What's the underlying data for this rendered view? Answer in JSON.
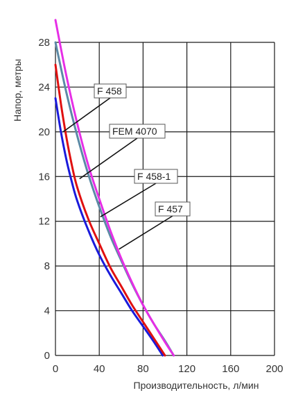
{
  "chart_data": {
    "type": "line",
    "title": "",
    "xlabel": "Производительность, л/мин",
    "ylabel": "Напор, метры",
    "xlim": [
      0,
      200
    ],
    "ylim": [
      0,
      28
    ],
    "xticks": [
      0,
      40,
      80,
      120,
      160,
      200
    ],
    "yticks": [
      0,
      4,
      8,
      12,
      16,
      20,
      24,
      28
    ],
    "xtick_labels": [
      "0",
      "40",
      "80",
      "120",
      "160",
      "200"
    ],
    "ytick_labels": [
      "0",
      "4",
      "8",
      "12",
      "16",
      "20",
      "24",
      "28"
    ],
    "grid": true,
    "series": [
      {
        "name": "F 458",
        "color": "#1a1adb",
        "points": [
          [
            0,
            23
          ],
          [
            5,
            20
          ],
          [
            10,
            17.5
          ],
          [
            15,
            15.5
          ],
          [
            20,
            13.8
          ],
          [
            30,
            11.2
          ],
          [
            40,
            9
          ],
          [
            50,
            7.2
          ],
          [
            60,
            5.6
          ],
          [
            70,
            4
          ],
          [
            80,
            2.6
          ],
          [
            90,
            1.2
          ],
          [
            98,
            0
          ]
        ]
      },
      {
        "name": "FEM 4070",
        "color": "#e01010",
        "points": [
          [
            0,
            26
          ],
          [
            5,
            22.5
          ],
          [
            10,
            19.5
          ],
          [
            15,
            17
          ],
          [
            20,
            15
          ],
          [
            30,
            12.2
          ],
          [
            40,
            10
          ],
          [
            50,
            7.9
          ],
          [
            60,
            6.2
          ],
          [
            70,
            4.5
          ],
          [
            80,
            3
          ],
          [
            90,
            1.5
          ],
          [
            100,
            0
          ]
        ]
      },
      {
        "name": "F 458-1",
        "color": "#5c8aa6",
        "points": [
          [
            0,
            28
          ],
          [
            10,
            23.5
          ],
          [
            20,
            19.6
          ],
          [
            30,
            16.2
          ],
          [
            40,
            13.3
          ],
          [
            50,
            10.7
          ],
          [
            60,
            8.5
          ],
          [
            70,
            6.4
          ],
          [
            80,
            4.5
          ],
          [
            90,
            2.8
          ],
          [
            100,
            1.3
          ],
          [
            108,
            0
          ]
        ]
      },
      {
        "name": "F 457",
        "color": "#e62ee6",
        "points": [
          [
            0,
            30
          ],
          [
            10,
            25
          ],
          [
            20,
            20.7
          ],
          [
            30,
            17
          ],
          [
            40,
            14
          ],
          [
            50,
            11.2
          ],
          [
            60,
            8.7
          ],
          [
            70,
            6.5
          ],
          [
            80,
            4.5
          ],
          [
            90,
            2.8
          ],
          [
            100,
            1.2
          ],
          [
            108,
            0
          ]
        ]
      }
    ],
    "legend_placement": "callouts",
    "callouts": [
      {
        "label": "F 458",
        "target": [
          7,
          20
        ]
      },
      {
        "label": "FEM 4070",
        "target": [
          22,
          15.8
        ]
      },
      {
        "label": "F 458-1",
        "target": [
          41,
          12.4
        ]
      },
      {
        "label": "F 457",
        "target": [
          58,
          9.5
        ]
      }
    ]
  }
}
